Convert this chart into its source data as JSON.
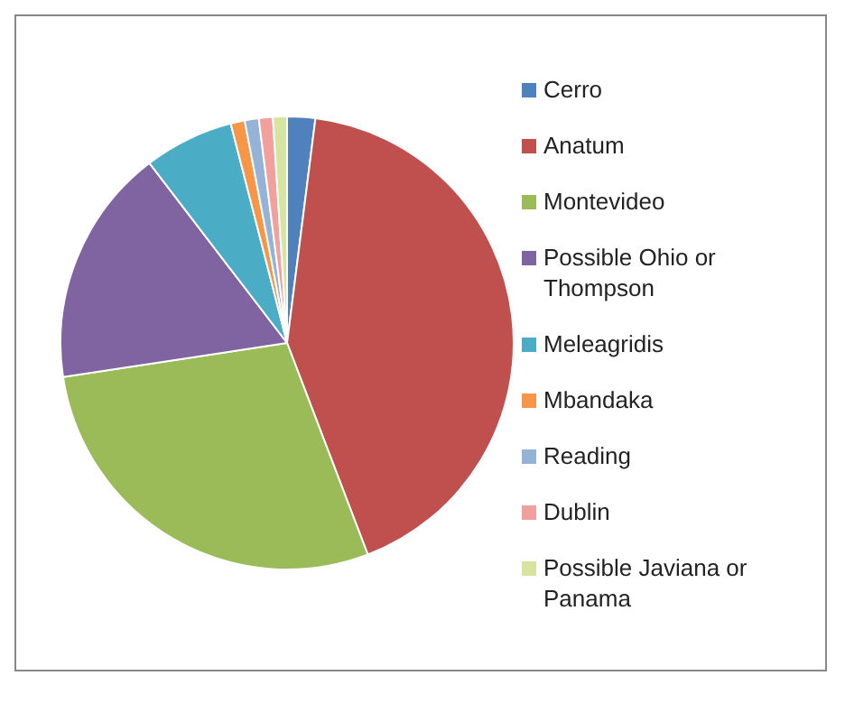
{
  "chart_data": {
    "type": "pie",
    "categories": [
      "Cerro",
      "Anatum",
      "Montevideo",
      "Possible Ohio or Thompson",
      "Meleagridis",
      "Mbandaka",
      "Reading",
      "Dublin",
      "Possible Javiana or Panama"
    ],
    "values": [
      2,
      42.2,
      28.4,
      17,
      6.4,
      1,
      1,
      1,
      1
    ],
    "colors": [
      "#4f81bd",
      "#c0504d",
      "#9bbb59",
      "#8064a2",
      "#4bacc6",
      "#f79646",
      "#95b3d7",
      "#f2a09e",
      "#d7e4a0"
    ],
    "legend": "right"
  }
}
